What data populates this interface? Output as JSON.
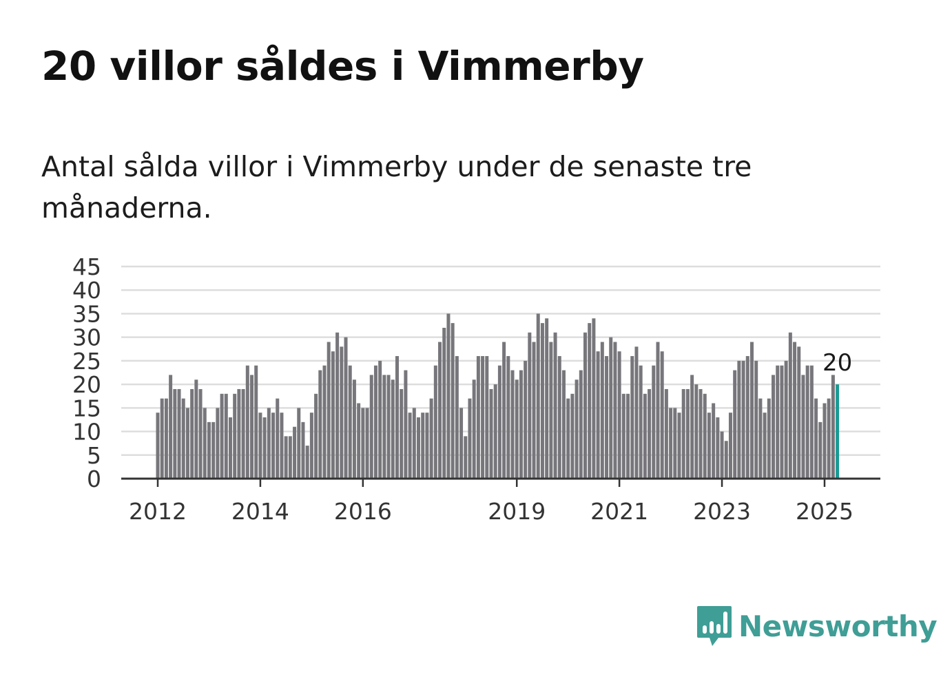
{
  "title": "20 villor såldes i Vimmerby",
  "subtitle": "Antal sålda villor i Vimmerby under de senaste tre månaderna.",
  "brand": {
    "name": "Newsworthy",
    "logo_icon": "bar-chart-speech-bubble-icon",
    "color": "#3f9e96"
  },
  "colors": {
    "bar": "#77767b",
    "highlight": "#1a9a94",
    "grid": "#dddddd",
    "axis": "#333333"
  },
  "chart_data": {
    "type": "bar",
    "title": "",
    "xlabel": "",
    "ylabel": "",
    "ylim": [
      0,
      45
    ],
    "yticks": [
      0,
      5,
      10,
      15,
      20,
      25,
      30,
      35,
      40,
      45
    ],
    "xticks": [
      {
        "label": "2012",
        "index": 0
      },
      {
        "label": "2014",
        "index": 24
      },
      {
        "label": "2016",
        "index": 48
      },
      {
        "label": "2019",
        "index": 84
      },
      {
        "label": "2021",
        "index": 108
      },
      {
        "label": "2023",
        "index": 132
      },
      {
        "label": "2025",
        "index": 156
      }
    ],
    "grid": true,
    "highlight_index": 159,
    "highlight_label": "20",
    "values": [
      14,
      17,
      17,
      22,
      19,
      19,
      17,
      15,
      19,
      21,
      19,
      15,
      12,
      12,
      15,
      18,
      18,
      13,
      18,
      19,
      19,
      24,
      22,
      24,
      14,
      13,
      15,
      14,
      17,
      14,
      9,
      9,
      11,
      15,
      12,
      7,
      14,
      18,
      23,
      24,
      29,
      27,
      31,
      28,
      30,
      24,
      21,
      16,
      15,
      15,
      22,
      24,
      25,
      22,
      22,
      21,
      26,
      19,
      23,
      14,
      15,
      13,
      14,
      14,
      17,
      24,
      29,
      32,
      35,
      33,
      26,
      15,
      9,
      17,
      21,
      26,
      26,
      26,
      19,
      20,
      24,
      29,
      26,
      23,
      21,
      23,
      25,
      31,
      29,
      35,
      33,
      34,
      29,
      31,
      26,
      23,
      17,
      18,
      21,
      23,
      31,
      33,
      34,
      27,
      29,
      26,
      30,
      29,
      27,
      18,
      18,
      26,
      28,
      24,
      18,
      19,
      24,
      29,
      27,
      19,
      15,
      15,
      14,
      19,
      19,
      22,
      20,
      19,
      18,
      14,
      16,
      13,
      10,
      8,
      14,
      23,
      25,
      25,
      26,
      29,
      25,
      17,
      14,
      17,
      22,
      24,
      24,
      25,
      31,
      29,
      28,
      22,
      24,
      24,
      17,
      12,
      16,
      17,
      22,
      20
    ]
  }
}
